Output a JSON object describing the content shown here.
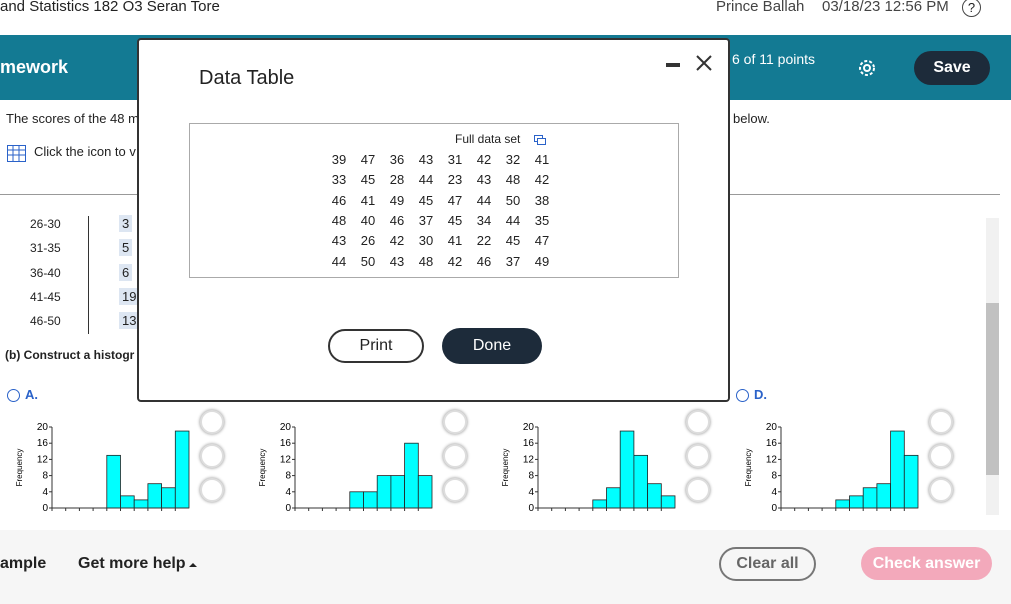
{
  "top_bar": {
    "course": "and Statistics 182 O3 Seran Tore",
    "user": "Prince Ballah",
    "datetime": "03/18/23 12:56 PM",
    "help": "?"
  },
  "header": {
    "title": "mework",
    "points": "6 of 11 points",
    "save": "Save"
  },
  "question": {
    "intro": "The scores of the 48 m",
    "intro_end": "below.",
    "icon_text": "Click the icon to v",
    "part_b": "(b) Construct a histogr"
  },
  "frequency_table": {
    "rows": [
      [
        "26-30",
        3
      ],
      [
        "31-35",
        5
      ],
      [
        "36-40",
        6
      ],
      [
        "41-45",
        19
      ],
      [
        "46-50",
        13
      ]
    ]
  },
  "options": [
    {
      "label": "A.",
      "chart": {
        "type": "histogram",
        "y_label": "Frequency",
        "ylim": [
          0,
          20
        ],
        "yticks": [
          0,
          4,
          8,
          12,
          16,
          20
        ],
        "values": [
          0,
          0,
          0,
          0,
          13,
          3,
          2,
          6,
          5,
          19
        ]
      }
    },
    {
      "chart": {
        "type": "histogram",
        "y_label": "Frequency",
        "ylim": [
          0,
          20
        ],
        "yticks": [
          0,
          4,
          8,
          12,
          16,
          20
        ],
        "values": [
          0,
          0,
          0,
          0,
          4,
          4,
          8,
          8,
          16,
          8
        ]
      }
    },
    {
      "chart": {
        "type": "histogram",
        "y_label": "Frequency",
        "ylim": [
          0,
          20
        ],
        "yticks": [
          0,
          4,
          8,
          12,
          16,
          20
        ],
        "values": [
          0,
          0,
          0,
          0,
          2,
          5,
          19,
          13,
          6,
          3
        ]
      }
    },
    {
      "label": "D.",
      "chart": {
        "type": "histogram",
        "y_label": "Frequency",
        "ylim": [
          0,
          20
        ],
        "yticks": [
          0,
          4,
          8,
          12,
          16,
          20
        ],
        "values": [
          0,
          0,
          0,
          0,
          2,
          3,
          5,
          6,
          19,
          13
        ]
      }
    }
  ],
  "modal": {
    "title": "Data Table",
    "caption": "Full data set",
    "rows": [
      [
        39,
        47,
        36,
        43,
        31,
        42,
        32,
        41
      ],
      [
        33,
        45,
        28,
        44,
        23,
        43,
        48,
        42
      ],
      [
        46,
        41,
        49,
        45,
        47,
        44,
        50,
        38
      ],
      [
        48,
        40,
        46,
        37,
        45,
        34,
        44,
        35
      ],
      [
        43,
        26,
        42,
        30,
        41,
        22,
        45,
        47
      ],
      [
        44,
        50,
        43,
        48,
        42,
        46,
        37,
        49
      ]
    ],
    "print": "Print",
    "done": "Done"
  },
  "footer": {
    "example": "ample",
    "help": "Get more help",
    "clear": "Clear all",
    "check": "Check answer"
  }
}
